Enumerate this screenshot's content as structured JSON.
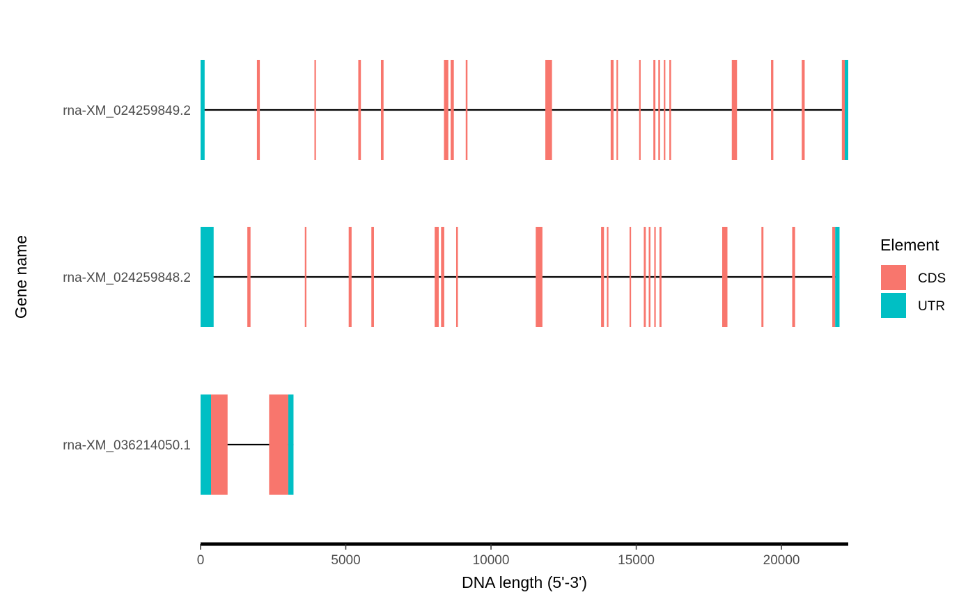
{
  "chart_data": {
    "type": "gene structure",
    "xlabel": "DNA length (5'-3')",
    "ylabel": "Gene name",
    "xlim": [
      0,
      22300
    ],
    "x_ticks": [
      0,
      5000,
      10000,
      15000,
      20000
    ],
    "legend": {
      "title": "Element",
      "position": "right",
      "entries": [
        {
          "label": "CDS",
          "color": "#F8766D"
        },
        {
          "label": "UTR",
          "color": "#00BFC4"
        }
      ]
    },
    "colors": {
      "CDS": "#F8766D",
      "UTR": "#00BFC4",
      "intron_line": "#000000",
      "axis_line": "#000000"
    },
    "genes": [
      {
        "name": "rna-XM_024259849.2",
        "start": 0,
        "end": 22300,
        "elements": [
          {
            "type": "UTR",
            "start": 0,
            "end": 140
          },
          {
            "type": "CDS",
            "start": 1940,
            "end": 2040
          },
          {
            "type": "CDS",
            "start": 3920,
            "end": 3960
          },
          {
            "type": "CDS",
            "start": 5430,
            "end": 5520
          },
          {
            "type": "CDS",
            "start": 6210,
            "end": 6300
          },
          {
            "type": "CDS",
            "start": 8380,
            "end": 8530
          },
          {
            "type": "CDS",
            "start": 8610,
            "end": 8720
          },
          {
            "type": "CDS",
            "start": 9130,
            "end": 9190
          },
          {
            "type": "CDS",
            "start": 11870,
            "end": 12100
          },
          {
            "type": "CDS",
            "start": 14120,
            "end": 14220
          },
          {
            "type": "CDS",
            "start": 14320,
            "end": 14370
          },
          {
            "type": "CDS",
            "start": 15100,
            "end": 15140
          },
          {
            "type": "CDS",
            "start": 15590,
            "end": 15660
          },
          {
            "type": "CDS",
            "start": 15760,
            "end": 15820
          },
          {
            "type": "CDS",
            "start": 15950,
            "end": 16000
          },
          {
            "type": "CDS",
            "start": 16140,
            "end": 16200
          },
          {
            "type": "CDS",
            "start": 18290,
            "end": 18470
          },
          {
            "type": "CDS",
            "start": 19640,
            "end": 19720
          },
          {
            "type": "CDS",
            "start": 20700,
            "end": 20800
          },
          {
            "type": "CDS",
            "start": 22080,
            "end": 22180
          },
          {
            "type": "UTR",
            "start": 22180,
            "end": 22300
          }
        ]
      },
      {
        "name": "rna-XM_024259848.2",
        "start": 0,
        "end": 22000,
        "elements": [
          {
            "type": "UTR",
            "start": 0,
            "end": 450
          },
          {
            "type": "CDS",
            "start": 1610,
            "end": 1720
          },
          {
            "type": "CDS",
            "start": 3590,
            "end": 3630
          },
          {
            "type": "CDS",
            "start": 5100,
            "end": 5200
          },
          {
            "type": "CDS",
            "start": 5880,
            "end": 5970
          },
          {
            "type": "CDS",
            "start": 8060,
            "end": 8200
          },
          {
            "type": "CDS",
            "start": 8280,
            "end": 8390
          },
          {
            "type": "CDS",
            "start": 8800,
            "end": 8860
          },
          {
            "type": "CDS",
            "start": 11540,
            "end": 11770
          },
          {
            "type": "CDS",
            "start": 13790,
            "end": 13890
          },
          {
            "type": "CDS",
            "start": 13990,
            "end": 14040
          },
          {
            "type": "CDS",
            "start": 14770,
            "end": 14810
          },
          {
            "type": "CDS",
            "start": 15260,
            "end": 15330
          },
          {
            "type": "CDS",
            "start": 15430,
            "end": 15490
          },
          {
            "type": "CDS",
            "start": 15620,
            "end": 15670
          },
          {
            "type": "CDS",
            "start": 15800,
            "end": 15870
          },
          {
            "type": "CDS",
            "start": 17960,
            "end": 18140
          },
          {
            "type": "CDS",
            "start": 19310,
            "end": 19380
          },
          {
            "type": "CDS",
            "start": 20370,
            "end": 20470
          },
          {
            "type": "CDS",
            "start": 21750,
            "end": 21850
          },
          {
            "type": "UTR",
            "start": 21850,
            "end": 22000
          }
        ]
      },
      {
        "name": "rna-XM_036214050.1",
        "start": 0,
        "end": 3200,
        "elements": [
          {
            "type": "UTR",
            "start": 0,
            "end": 360
          },
          {
            "type": "CDS",
            "start": 360,
            "end": 930
          },
          {
            "type": "CDS",
            "start": 2360,
            "end": 3020
          },
          {
            "type": "UTR",
            "start": 3020,
            "end": 3200
          }
        ]
      }
    ]
  }
}
